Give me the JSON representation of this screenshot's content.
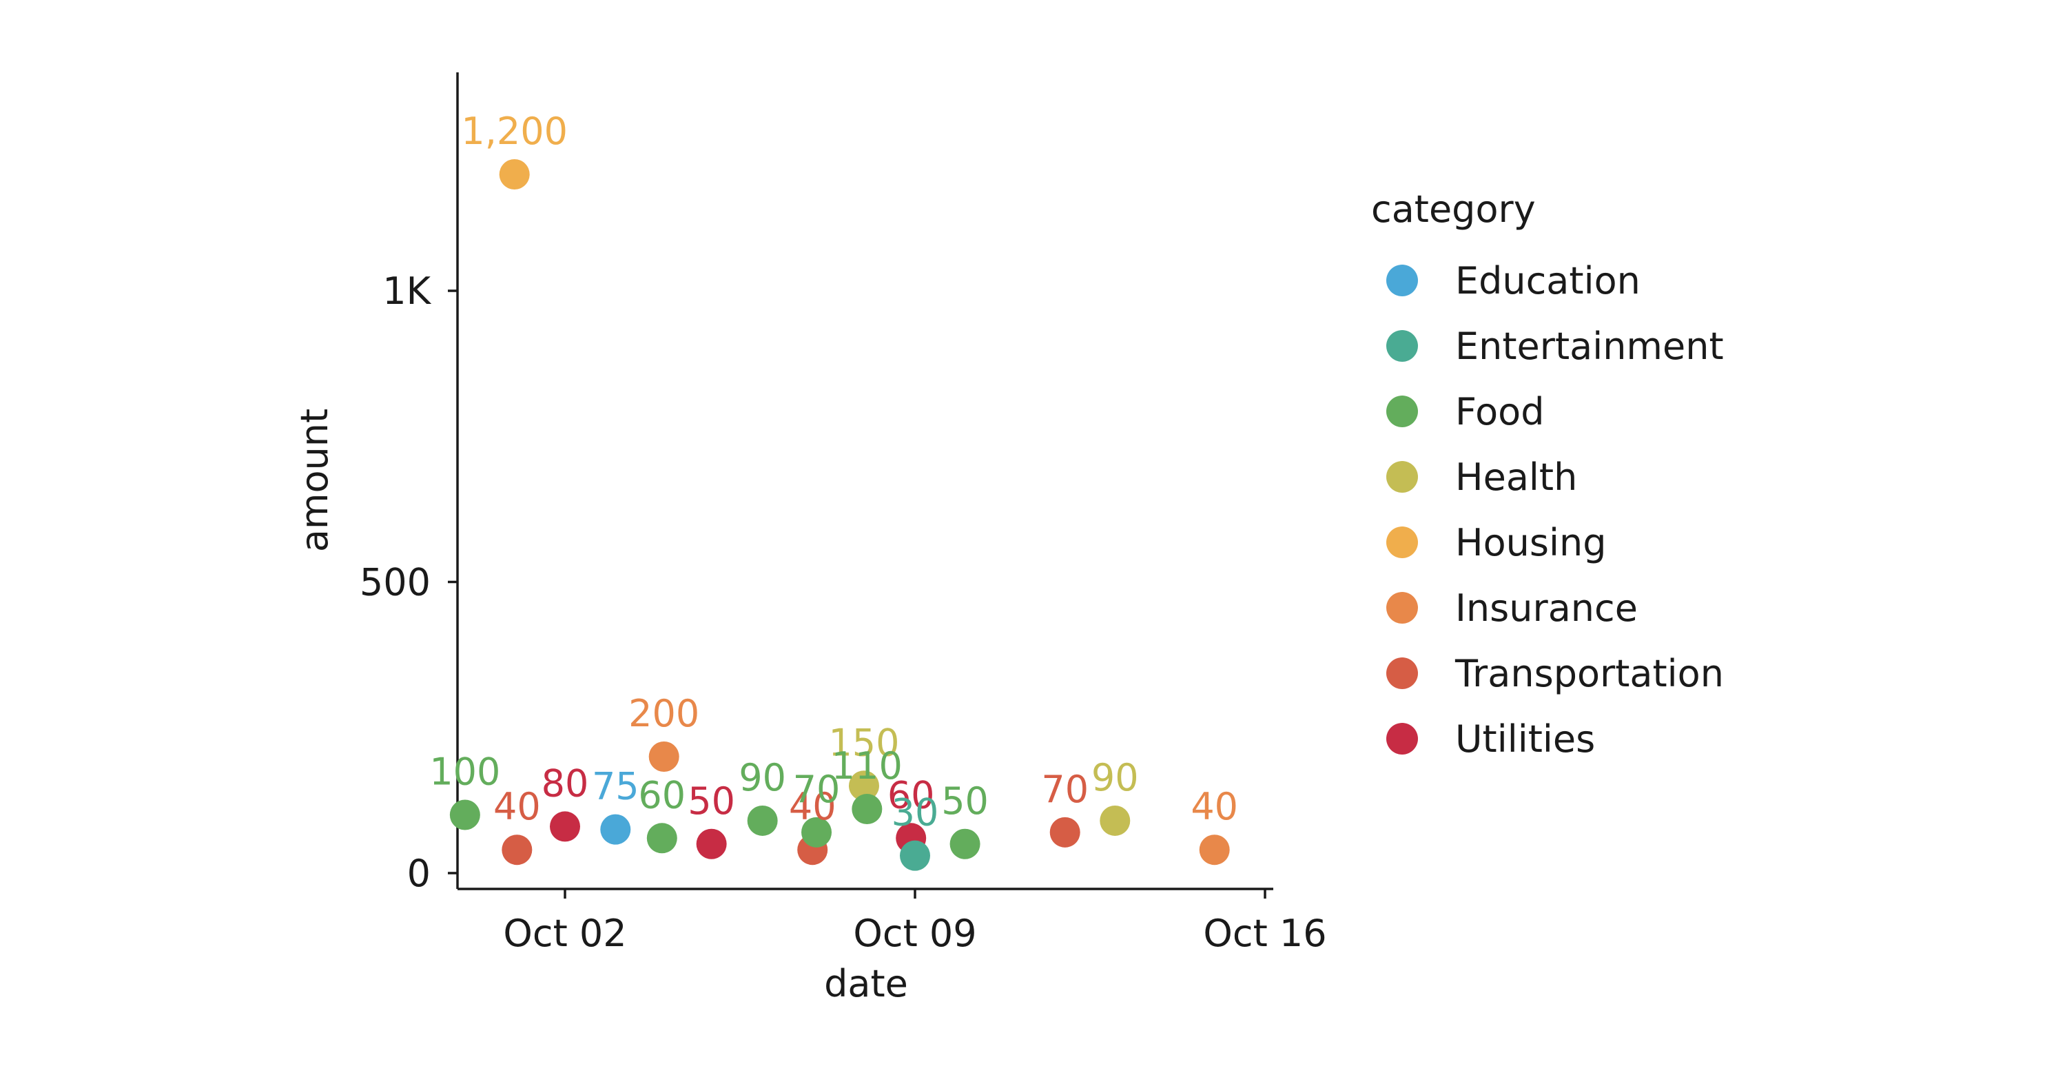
{
  "chart_data": {
    "type": "scatter",
    "xlabel": "date",
    "ylabel": "amount",
    "xlim": [
      "2023-09-29",
      "2023-10-16"
    ],
    "ylim": [
      0,
      1400
    ],
    "x_ticks": [
      "Oct 02",
      "Oct 09",
      "Oct 16"
    ],
    "y_ticks": [
      {
        "value": 0,
        "label": "0"
      },
      {
        "value": 500,
        "label": "500"
      },
      {
        "value": 1000,
        "label": "1K"
      }
    ],
    "grid": false,
    "legend": {
      "title": "category",
      "placement": "right"
    },
    "colors": {
      "Education": "#4aa8d8",
      "Entertainment": "#4aab93",
      "Food": "#63ad5c",
      "Health": "#c4bd54",
      "Housing": "#f0ae4c",
      "Insurance": "#e8884a",
      "Transportation": "#d65d45",
      "Utilities": "#c72c44"
    },
    "categories": [
      "Education",
      "Entertainment",
      "Food",
      "Health",
      "Housing",
      "Insurance",
      "Transportation",
      "Utilities"
    ],
    "points": [
      {
        "date": "2023-09-30",
        "amount": 100,
        "category": "Food",
        "label": "100"
      },
      {
        "date": "2023-10-01",
        "amount": 1200,
        "category": "Housing",
        "label": "1,200"
      },
      {
        "date": "2023-10-01",
        "amount": 40,
        "category": "Transportation",
        "label": "40"
      },
      {
        "date": "2023-10-02",
        "amount": 80,
        "category": "Utilities",
        "label": "80"
      },
      {
        "date": "2023-10-03",
        "amount": 75,
        "category": "Education",
        "label": "75"
      },
      {
        "date": "2023-10-04",
        "amount": 200,
        "category": "Insurance",
        "label": "200"
      },
      {
        "date": "2023-10-04",
        "amount": 60,
        "category": "Food",
        "label": "60"
      },
      {
        "date": "2023-10-05",
        "amount": 50,
        "category": "Utilities",
        "label": "50"
      },
      {
        "date": "2023-10-06",
        "amount": 90,
        "category": "Food",
        "label": "90"
      },
      {
        "date": "2023-10-07",
        "amount": 40,
        "category": "Transportation",
        "label": "40"
      },
      {
        "date": "2023-10-07",
        "amount": 70,
        "category": "Food",
        "label": "70"
      },
      {
        "date": "2023-10-08",
        "amount": 150,
        "category": "Health",
        "label": "150"
      },
      {
        "date": "2023-10-08",
        "amount": 110,
        "category": "Food",
        "label": "110"
      },
      {
        "date": "2023-10-09",
        "amount": 60,
        "category": "Utilities",
        "label": "60"
      },
      {
        "date": "2023-10-09",
        "amount": 30,
        "category": "Entertainment",
        "label": "30"
      },
      {
        "date": "2023-10-10",
        "amount": 50,
        "category": "Food",
        "label": "50"
      },
      {
        "date": "2023-10-12",
        "amount": 70,
        "category": "Transportation",
        "label": "70"
      },
      {
        "date": "2023-10-13",
        "amount": 90,
        "category": "Health",
        "label": "90"
      },
      {
        "date": "2023-10-15",
        "amount": 40,
        "category": "Insurance",
        "label": "40"
      }
    ]
  }
}
